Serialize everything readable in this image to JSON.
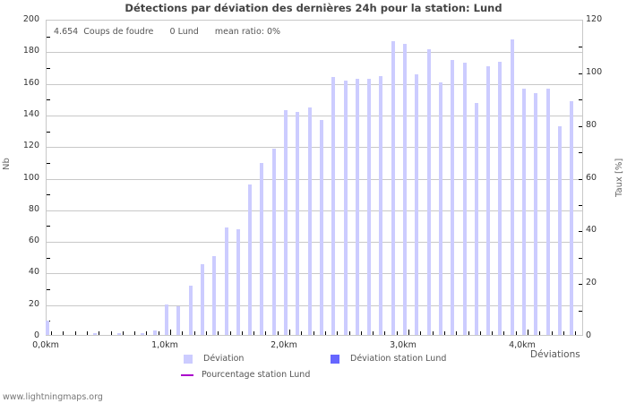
{
  "chart_data": {
    "type": "bar",
    "title": "Détections par déviation des dernières 24h pour la station: Lund",
    "xlabel": "Déviations",
    "ylabel": "Nb",
    "ylabel_right": "Taux [%]",
    "ylim": [
      0,
      200
    ],
    "ylim_right": [
      0,
      120
    ],
    "yticks": [
      "200",
      "180",
      "160",
      "140",
      "120",
      "100",
      "80",
      "60",
      "40",
      "20",
      "0"
    ],
    "yticks_right": [
      "120",
      "100",
      "80",
      "60",
      "40",
      "20",
      "0"
    ],
    "xticks": [
      "0,0km",
      "1,0km",
      "2,0km",
      "3,0km",
      "4,0km"
    ],
    "grid": true,
    "legend_position": "bottom",
    "x": [
      0.0,
      0.1,
      0.2,
      0.3,
      0.4,
      0.5,
      0.6,
      0.7,
      0.8,
      0.9,
      1.0,
      1.1,
      1.2,
      1.3,
      1.4,
      1.5,
      1.6,
      1.7,
      1.8,
      1.9,
      2.0,
      2.1,
      2.2,
      2.3,
      2.4,
      2.5,
      2.6,
      2.7,
      2.8,
      2.9,
      3.0,
      3.1,
      3.2,
      3.3,
      3.4,
      3.5,
      3.6,
      3.7,
      3.8,
      3.9,
      4.0,
      4.1,
      4.2,
      4.3,
      4.4
    ],
    "series": [
      {
        "name": "Déviation",
        "color": "#ccccff",
        "values": [
          9,
          0,
          0,
          0,
          1,
          0,
          1,
          0,
          1,
          3,
          19,
          18,
          31,
          45,
          50,
          68,
          67,
          95,
          109,
          118,
          142,
          141,
          144,
          136,
          163,
          161,
          162,
          162,
          164,
          186,
          184,
          165,
          181,
          160,
          174,
          172,
          147,
          170,
          173,
          187,
          156,
          153,
          156,
          132,
          148
        ]
      },
      {
        "name": "Déviation station Lund",
        "color": "#6666ff",
        "values": [
          0,
          0,
          0,
          0,
          0,
          0,
          0,
          0,
          0,
          0,
          0,
          0,
          0,
          0,
          0,
          0,
          0,
          0,
          0,
          0,
          0,
          0,
          0,
          0,
          0,
          0,
          0,
          0,
          0,
          0,
          0,
          0,
          0,
          0,
          0,
          0,
          0,
          0,
          0,
          0,
          0,
          0,
          0,
          0,
          0
        ]
      },
      {
        "name": "Pourcentage station Lund",
        "color": "#aa00cc",
        "type": "line",
        "values": []
      }
    ]
  },
  "info": {
    "count": "4.654",
    "count_label": "Coups de foudre",
    "station_count": "0 Lund",
    "mean_ratio": "mean ratio: 0%"
  },
  "legend": [
    {
      "label": "Déviation",
      "color": "#ccccff"
    },
    {
      "label": "Déviation station Lund",
      "color": "#6666ff"
    },
    {
      "label": "Pourcentage station Lund",
      "color": "#aa00cc"
    }
  ],
  "footer": "www.lightningmaps.org"
}
